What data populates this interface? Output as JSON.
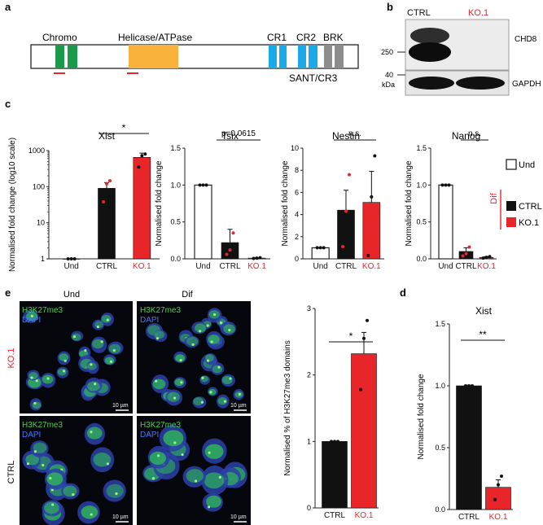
{
  "panels": {
    "a": {
      "letter": "a",
      "domains": [
        "Chromo",
        "Helicase/ATPase",
        "CR1",
        "CR2",
        "BRK"
      ],
      "sant": "SANT/CR3",
      "colors": {
        "chromo": "#1a9a4a",
        "helicase": "#f8b23c",
        "cr": "#1aaae8",
        "brk": "#8c8c8c",
        "mark": "#e8262a"
      }
    },
    "b": {
      "letter": "b",
      "lanes": [
        "CTRL",
        "KO.1"
      ],
      "lane_colors": [
        "#111111",
        "#e8262a"
      ],
      "proteins": [
        "CHD8",
        "GAPDH"
      ],
      "markers": [
        "250",
        "40"
      ],
      "unit": "kDa"
    },
    "c": {
      "letter": "c",
      "legend": {
        "items": [
          "Und",
          "CTRL",
          "KO.1"
        ],
        "colors": [
          "#ffffff",
          "#111111",
          "#e8262a"
        ],
        "group": "Dif"
      }
    },
    "d": {
      "letter": "d"
    },
    "e": {
      "letter": "e",
      "col_labels": [
        "Und",
        "Dif"
      ],
      "row_labels": [
        "KO.1",
        "CTRL"
      ],
      "row_label_colors": [
        "#e8262a",
        "#111111"
      ],
      "stain": "H3K27me3",
      "counterstain": "DAPI",
      "scale": "10 µm"
    }
  },
  "chart_data": [
    {
      "id": "c-xist",
      "type": "bar",
      "title": "Xist",
      "ylabel": "Normalised fold change  (log10 scale)",
      "log": true,
      "ylim": [
        1,
        1000
      ],
      "yticks": [
        "1",
        "10",
        "100",
        "1000"
      ],
      "categories": [
        "Und",
        "CTRL",
        "KO.1"
      ],
      "category_colors": [
        "#111111",
        "#111111",
        "#e8262a"
      ],
      "values": [
        1,
        90,
        650
      ],
      "errors": [
        0,
        40,
        200
      ],
      "points": [
        [
          1,
          1,
          1
        ],
        [
          38,
          120,
          145
        ],
        [
          350,
          720,
          800
        ]
      ],
      "significance": "*"
    },
    {
      "id": "c-tsix",
      "type": "bar",
      "title": "Tsix",
      "ylabel": "Normalised fold change",
      "log": false,
      "ylim": [
        0,
        1.5
      ],
      "yticks": [
        "0.0",
        "0.5",
        "1.0",
        "1.5"
      ],
      "categories": [
        "Und",
        "CTRL",
        "KO.1"
      ],
      "category_colors": [
        "#111111",
        "#111111",
        "#e8262a"
      ],
      "values": [
        1.0,
        0.22,
        0.01
      ],
      "errors": [
        0,
        0.18,
        0.005
      ],
      "points": [
        [
          1,
          1,
          1
        ],
        [
          0.06,
          0.12,
          0.35
        ],
        [
          0.005,
          0.01,
          0.015
        ]
      ],
      "significance": "p=0.0615"
    },
    {
      "id": "c-nestin",
      "type": "bar",
      "title": "Nestin",
      "ylabel": "Normalised fold change",
      "log": false,
      "ylim": [
        0,
        10
      ],
      "yticks": [
        "0",
        "2",
        "4",
        "6",
        "8",
        "10"
      ],
      "categories": [
        "Und",
        "CTRL",
        "KO.1"
      ],
      "category_colors": [
        "#111111",
        "#111111",
        "#e8262a"
      ],
      "values": [
        1.0,
        4.4,
        5.1
      ],
      "errors": [
        0,
        1.8,
        2.8
      ],
      "points": [
        [
          1,
          1,
          1
        ],
        [
          1.1,
          4.3,
          7.6
        ],
        [
          0.3,
          5.6,
          9.3
        ]
      ],
      "significance": "n.s."
    },
    {
      "id": "c-nanog",
      "type": "bar",
      "title": "Nanog",
      "ylabel": "Normalised fold change",
      "log": false,
      "ylim": [
        0,
        1.5
      ],
      "yticks": [
        "0.0",
        "0.5",
        "1.0",
        "1.5"
      ],
      "categories": [
        "Und",
        "CTRL",
        "KO.1"
      ],
      "category_colors": [
        "#111111",
        "#111111",
        "#e8262a"
      ],
      "values": [
        1.0,
        0.1,
        0.02
      ],
      "errors": [
        0,
        0.05,
        0.01
      ],
      "points": [
        [
          1,
          1,
          1
        ],
        [
          0.04,
          0.07,
          0.16
        ],
        [
          0.01,
          0.02,
          0.03
        ]
      ],
      "significance": "n.s."
    },
    {
      "id": "e-domains",
      "type": "bar",
      "title": "",
      "ylabel": "Normalised % of H3K27me3 domains",
      "log": false,
      "ylim": [
        0,
        3
      ],
      "yticks": [
        "0",
        "1",
        "2",
        "3"
      ],
      "categories": [
        "CTRL",
        "KO.1"
      ],
      "category_colors": [
        "#111111",
        "#e8262a"
      ],
      "values": [
        1.0,
        2.32
      ],
      "errors": [
        0,
        0.32
      ],
      "points": [
        [
          1,
          1,
          1
        ],
        [
          1.78,
          2.55,
          2.82
        ]
      ],
      "significance": "*"
    },
    {
      "id": "d-xist",
      "type": "bar",
      "title": "Xist",
      "ylabel": "Normalised fold change",
      "log": false,
      "ylim": [
        0,
        1.5
      ],
      "yticks": [
        "0.0",
        "0.5",
        "1.0",
        "1.5"
      ],
      "categories": [
        "CTRL",
        "KO.1"
      ],
      "category_colors": [
        "#111111",
        "#e8262a"
      ],
      "values": [
        1.0,
        0.18
      ],
      "errors": [
        0,
        0.06
      ],
      "points": [
        [
          1,
          1,
          1
        ],
        [
          0.08,
          0.2,
          0.27
        ]
      ],
      "significance": "**"
    }
  ]
}
